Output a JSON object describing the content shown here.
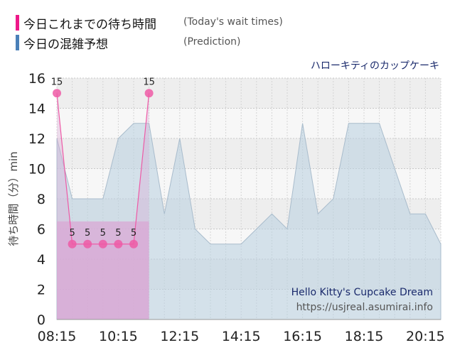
{
  "legend": {
    "items": [
      {
        "label": "今日これまでの待ち時間",
        "sub": "(Today's wait times)",
        "color": "#ee1889"
      },
      {
        "label": "今日の混雑予想",
        "sub": "(Prediction)",
        "color": "#4a80b8"
      }
    ]
  },
  "attraction_name_jp": "ハローキティのカップケーキ",
  "watermark": {
    "title": "Hello Kitty's Cupcake Dream",
    "url": "https://usjreal.asumirai.info"
  },
  "chart_data": {
    "type": "area",
    "xlabel": "",
    "ylabel": "待ち時間（分）min",
    "ylim": [
      0,
      16
    ],
    "yticks": [
      0,
      2,
      4,
      6,
      8,
      10,
      12,
      14,
      16
    ],
    "xlim": [
      "08:15",
      "20:45"
    ],
    "xticks": [
      "08:15",
      "10:15",
      "12:15",
      "14:15",
      "16:15",
      "18:15",
      "20:15"
    ],
    "grid": true,
    "series": [
      {
        "name": "今日の混雑予想",
        "kind": "area",
        "color": "#b8cfe0",
        "points": [
          [
            "08:15",
            12
          ],
          [
            "08:45",
            8
          ],
          [
            "09:15",
            8
          ],
          [
            "09:45",
            8
          ],
          [
            "10:15",
            12
          ],
          [
            "10:45",
            13
          ],
          [
            "11:15",
            13
          ],
          [
            "11:45",
            7
          ],
          [
            "12:15",
            12
          ],
          [
            "12:45",
            6
          ],
          [
            "13:15",
            5
          ],
          [
            "13:45",
            5
          ],
          [
            "14:15",
            5
          ],
          [
            "14:45",
            6
          ],
          [
            "15:15",
            7
          ],
          [
            "15:45",
            6
          ],
          [
            "16:15",
            13
          ],
          [
            "16:45",
            7
          ],
          [
            "17:15",
            8
          ],
          [
            "17:45",
            13
          ],
          [
            "18:15",
            13
          ],
          [
            "18:45",
            13
          ],
          [
            "19:15",
            10
          ],
          [
            "19:45",
            7
          ],
          [
            "20:15",
            7
          ],
          [
            "20:45",
            5
          ]
        ]
      },
      {
        "name": "今日これまでの待ち時間",
        "kind": "line",
        "color": "#ee5aa6",
        "fill": "#d9a7d4",
        "points": [
          [
            "08:15",
            15
          ],
          [
            "08:45",
            5
          ],
          [
            "09:15",
            5
          ],
          [
            "09:45",
            5
          ],
          [
            "10:15",
            5
          ],
          [
            "10:45",
            5
          ],
          [
            "11:15",
            15
          ]
        ],
        "labels": [
          "15",
          "5",
          "5",
          "5",
          "5",
          "5",
          "15"
        ]
      }
    ]
  }
}
